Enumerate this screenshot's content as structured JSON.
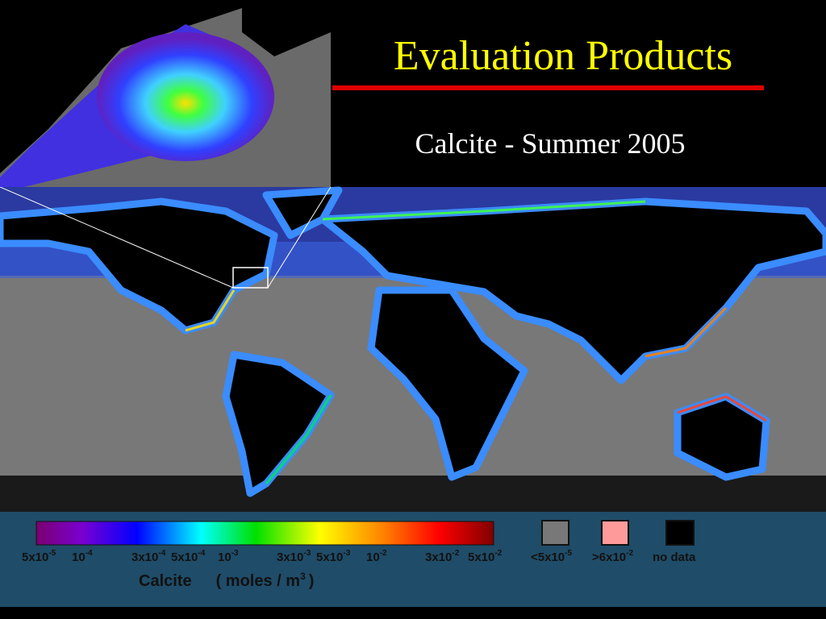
{
  "header": {
    "title": "Evaluation Products",
    "subtitle": "Calcite - Summer 2005"
  },
  "colorbar": {
    "ticks": [
      {
        "base": "5x10",
        "exp": "-5"
      },
      {
        "base": "10",
        "exp": "-4"
      },
      {
        "base": "3x10",
        "exp": "-4"
      },
      {
        "base": "5x10",
        "exp": "-4"
      },
      {
        "base": "10",
        "exp": "-3"
      },
      {
        "base": "3x10",
        "exp": "-3"
      },
      {
        "base": "5x10",
        "exp": "-3"
      },
      {
        "base": "10",
        "exp": "-2"
      },
      {
        "base": "3x10",
        "exp": "-2"
      },
      {
        "base": "5x10",
        "exp": "-2"
      }
    ],
    "label": {
      "name": "Calcite",
      "units": "( moles / m",
      "exp": "3",
      "close": ")"
    }
  },
  "legend": [
    {
      "prefix": "<5x10",
      "exp": "-5"
    },
    {
      "prefix": ">6x10",
      "exp": "-2"
    },
    {
      "prefix": "no data",
      "exp": ""
    }
  ]
}
